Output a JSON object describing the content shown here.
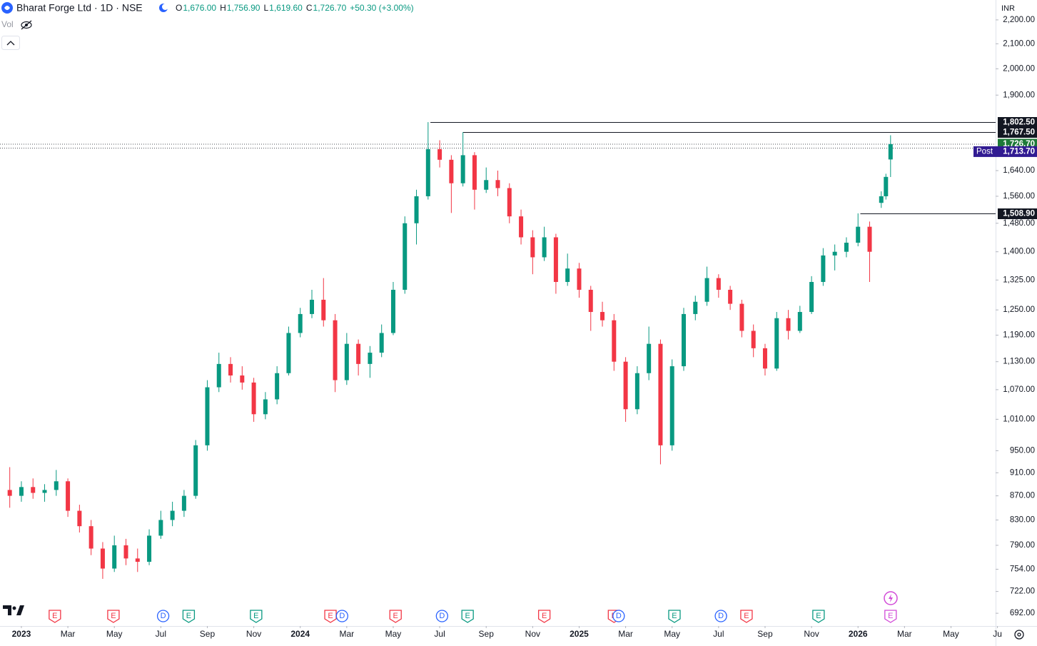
{
  "chart_data": {
    "type": "candlestick",
    "symbol": "Bharat Forge Ltd · 1D · NSE",
    "legend": {
      "o_label": "O",
      "o": "1,676.00",
      "h_label": "H",
      "h": "1,756.90",
      "l_label": "L",
      "l": "1,619.60",
      "c_label": "C",
      "c": "1,726.70",
      "change": "+50.30 (+3.00%)"
    },
    "volume_label": "Vol",
    "currency": "INR",
    "log_scale": true,
    "up_color": "#089981",
    "down_color": "#f23645",
    "ylim": [
      675,
      2287
    ],
    "yticks": [
      {
        "value": 2200,
        "label": "2,200.00"
      },
      {
        "value": 2100,
        "label": "2,100.00"
      },
      {
        "value": 2000,
        "label": "2,000.00"
      },
      {
        "value": 1900,
        "label": "1,900.00"
      },
      {
        "value": 1640,
        "label": "1,640.00"
      },
      {
        "value": 1560,
        "label": "1,560.00"
      },
      {
        "value": 1480,
        "label": "1,480.00"
      },
      {
        "value": 1400,
        "label": "1,400.00"
      },
      {
        "value": 1325,
        "label": "1,325.00"
      },
      {
        "value": 1250,
        "label": "1,250.00"
      },
      {
        "value": 1190,
        "label": "1,190.00"
      },
      {
        "value": 1130,
        "label": "1,130.00"
      },
      {
        "value": 1070,
        "label": "1,070.00"
      },
      {
        "value": 1010,
        "label": "1,010.00"
      },
      {
        "value": 950,
        "label": "950.00"
      },
      {
        "value": 910,
        "label": "910.00"
      },
      {
        "value": 870,
        "label": "870.00"
      },
      {
        "value": 830,
        "label": "830.00"
      },
      {
        "value": 790,
        "label": "790.00"
      },
      {
        "value": 754,
        "label": "754.00"
      },
      {
        "value": 722,
        "label": "722.00"
      },
      {
        "value": 692,
        "label": "692.00"
      }
    ],
    "xlim": [
      -0.92,
      41.92
    ],
    "xticks": [
      {
        "value": 0,
        "label": "2023"
      },
      {
        "value": 2,
        "label": "Mar"
      },
      {
        "value": 4,
        "label": "May"
      },
      {
        "value": 6,
        "label": "Jul"
      },
      {
        "value": 8,
        "label": "Sep"
      },
      {
        "value": 10,
        "label": "Nov"
      },
      {
        "value": 12,
        "label": "2024"
      },
      {
        "value": 14,
        "label": "Mar"
      },
      {
        "value": 16,
        "label": "May"
      },
      {
        "value": 18,
        "label": "Jul"
      },
      {
        "value": 20,
        "label": "Sep"
      },
      {
        "value": 22,
        "label": "Nov"
      },
      {
        "value": 24,
        "label": "2025"
      },
      {
        "value": 26,
        "label": "Mar"
      },
      {
        "value": 28,
        "label": "May"
      },
      {
        "value": 30,
        "label": "Jul"
      },
      {
        "value": 32,
        "label": "Sep"
      },
      {
        "value": 34,
        "label": "Nov"
      },
      {
        "value": 36,
        "label": "2026"
      },
      {
        "value": 38,
        "label": "Mar"
      },
      {
        "value": 40,
        "label": "May"
      },
      {
        "value": 42,
        "label": "Ju"
      }
    ],
    "x": [
      -0.5,
      0,
      0.5,
      1,
      1.5,
      2,
      2.5,
      3,
      3.5,
      4,
      4.5,
      5,
      5.5,
      6,
      6.5,
      7,
      7.5,
      8,
      8.5,
      9,
      9.5,
      10,
      10.5,
      11,
      11.5,
      12,
      12.5,
      13,
      13.5,
      14,
      14.5,
      15,
      15.5,
      16,
      16.5,
      17,
      17.5,
      18,
      18.5,
      19,
      19.5,
      20,
      20.5,
      21,
      21.5,
      22,
      22.5,
      23,
      23.5,
      24,
      24.5,
      25,
      25.5,
      26,
      26.5,
      27,
      27.5,
      28,
      28.5,
      29,
      29.5,
      30,
      30.5,
      31,
      31.5,
      32,
      32.5,
      33,
      33.5,
      34,
      34.5,
      35,
      35.5,
      36,
      36.5,
      37,
      37.2,
      37.4
    ],
    "ohlc": [
      [
        880,
        920,
        850,
        870
      ],
      [
        870,
        895,
        860,
        885
      ],
      [
        885,
        900,
        865,
        875
      ],
      [
        875,
        890,
        860,
        880
      ],
      [
        880,
        915,
        870,
        895
      ],
      [
        895,
        900,
        835,
        845
      ],
      [
        845,
        855,
        810,
        820
      ],
      [
        820,
        830,
        775,
        785
      ],
      [
        785,
        795,
        740,
        755
      ],
      [
        755,
        805,
        750,
        790
      ],
      [
        790,
        800,
        760,
        770
      ],
      [
        770,
        785,
        750,
        765
      ],
      [
        765,
        815,
        760,
        805
      ],
      [
        805,
        845,
        800,
        830
      ],
      [
        830,
        860,
        820,
        845
      ],
      [
        845,
        880,
        835,
        870
      ],
      [
        870,
        970,
        865,
        960
      ],
      [
        960,
        1090,
        950,
        1075
      ],
      [
        1075,
        1150,
        1065,
        1125
      ],
      [
        1125,
        1140,
        1085,
        1100
      ],
      [
        1100,
        1120,
        1070,
        1085
      ],
      [
        1085,
        1095,
        1005,
        1020
      ],
      [
        1020,
        1065,
        1010,
        1050
      ],
      [
        1050,
        1120,
        1040,
        1105
      ],
      [
        1105,
        1210,
        1100,
        1195
      ],
      [
        1195,
        1255,
        1185,
        1240
      ],
      [
        1240,
        1300,
        1230,
        1275
      ],
      [
        1275,
        1330,
        1210,
        1225
      ],
      [
        1225,
        1240,
        1065,
        1090
      ],
      [
        1090,
        1195,
        1080,
        1170
      ],
      [
        1170,
        1180,
        1100,
        1125
      ],
      [
        1125,
        1165,
        1095,
        1150
      ],
      [
        1150,
        1215,
        1140,
        1195
      ],
      [
        1195,
        1320,
        1190,
        1300
      ],
      [
        1300,
        1500,
        1290,
        1480
      ],
      [
        1480,
        1580,
        1420,
        1560
      ],
      [
        1560,
        1802.5,
        1550,
        1710
      ],
      [
        1710,
        1740,
        1650,
        1675
      ],
      [
        1675,
        1690,
        1510,
        1600
      ],
      [
        1600,
        1767.5,
        1590,
        1690
      ],
      [
        1690,
        1700,
        1520,
        1580
      ],
      [
        1580,
        1650,
        1570,
        1610
      ],
      [
        1610,
        1640,
        1560,
        1585
      ],
      [
        1585,
        1600,
        1480,
        1500
      ],
      [
        1500,
        1520,
        1420,
        1440
      ],
      [
        1440,
        1460,
        1340,
        1385
      ],
      [
        1385,
        1470,
        1375,
        1440
      ],
      [
        1440,
        1450,
        1290,
        1320
      ],
      [
        1320,
        1395,
        1310,
        1355
      ],
      [
        1355,
        1370,
        1280,
        1300
      ],
      [
        1300,
        1310,
        1200,
        1245
      ],
      [
        1245,
        1270,
        1210,
        1225
      ],
      [
        1225,
        1240,
        1110,
        1130
      ],
      [
        1130,
        1140,
        1005,
        1030
      ],
      [
        1030,
        1120,
        1020,
        1105
      ],
      [
        1105,
        1210,
        1090,
        1170
      ],
      [
        1170,
        1180,
        925,
        960
      ],
      [
        960,
        1135,
        950,
        1120
      ],
      [
        1120,
        1255,
        1110,
        1240
      ],
      [
        1240,
        1285,
        1225,
        1270
      ],
      [
        1270,
        1360,
        1260,
        1330
      ],
      [
        1330,
        1340,
        1280,
        1300
      ],
      [
        1300,
        1310,
        1250,
        1265
      ],
      [
        1265,
        1275,
        1185,
        1200
      ],
      [
        1200,
        1215,
        1140,
        1160
      ],
      [
        1160,
        1170,
        1100,
        1115
      ],
      [
        1115,
        1245,
        1110,
        1230
      ],
      [
        1230,
        1250,
        1180,
        1200
      ],
      [
        1200,
        1260,
        1195,
        1245
      ],
      [
        1245,
        1335,
        1240,
        1320
      ],
      [
        1320,
        1410,
        1310,
        1390
      ],
      [
        1390,
        1420,
        1350,
        1400
      ],
      [
        1400,
        1440,
        1385,
        1425
      ],
      [
        1425,
        1508.9,
        1415,
        1470
      ],
      [
        1470,
        1485,
        1320,
        1400
      ],
      [
        1540,
        1575,
        1525,
        1560
      ],
      [
        1560,
        1630,
        1550,
        1620
      ],
      [
        1676,
        1756.9,
        1619.6,
        1726.7
      ]
    ],
    "levels": [
      {
        "value": 1802.5,
        "label": "1,802.50",
        "from": 17.6
      },
      {
        "value": 1767.5,
        "label": "1,767.50",
        "from": 19
      },
      {
        "value": 1508.9,
        "label": "1,508.90",
        "from": 36.1
      }
    ],
    "last_price": {
      "value": 1726.7,
      "label": "1,726.70",
      "color": "#1e7a38"
    },
    "post_price": {
      "value": 1713.7,
      "label": "1,713.70",
      "tag": "Post",
      "color": "#311b92"
    },
    "events": [
      {
        "label": "E",
        "x": 1.44,
        "color": "#f23645"
      },
      {
        "label": "E",
        "x": 3.96,
        "color": "#f23645"
      },
      {
        "label": "D",
        "x": 6.1,
        "color": "#2962ff"
      },
      {
        "label": "E",
        "x": 7.2,
        "color": "#089981"
      },
      {
        "label": "E",
        "x": 10.1,
        "color": "#089981"
      },
      {
        "label": "E",
        "x": 13.3,
        "color": "#f23645"
      },
      {
        "label": "D",
        "x": 13.8,
        "color": "#2962ff"
      },
      {
        "label": "E",
        "x": 16.1,
        "color": "#f23645"
      },
      {
        "label": "D",
        "x": 18.1,
        "color": "#2962ff"
      },
      {
        "label": "E",
        "x": 19.2,
        "color": "#089981"
      },
      {
        "label": "E",
        "x": 22.5,
        "color": "#f23645"
      },
      {
        "label": "E",
        "x": 25.5,
        "color": "#f23645"
      },
      {
        "label": "D",
        "x": 25.7,
        "color": "#2962ff"
      },
      {
        "label": "E",
        "x": 28.1,
        "color": "#089981"
      },
      {
        "label": "D",
        "x": 30.1,
        "color": "#2962ff"
      },
      {
        "label": "E",
        "x": 31.2,
        "color": "#f23645"
      },
      {
        "label": "E",
        "x": 34.3,
        "color": "#089981"
      },
      {
        "label": "E",
        "x": 37.4,
        "color": "#d24bd8"
      }
    ]
  }
}
